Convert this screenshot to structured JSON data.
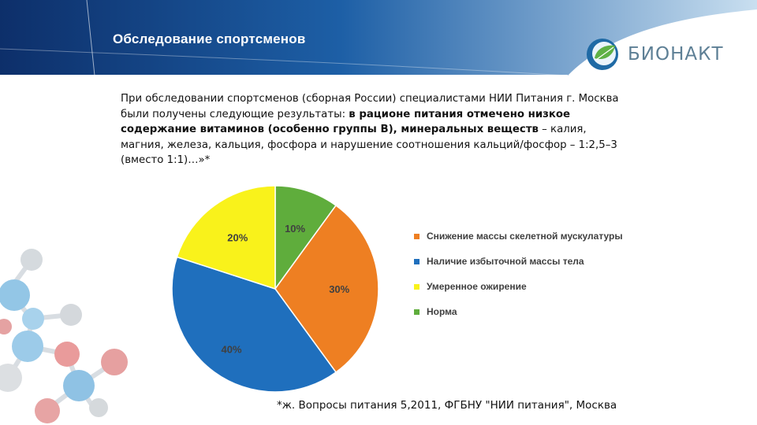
{
  "header": {
    "title": "Обследование спортсменов",
    "logo_text": "БИОНАКТ",
    "logo_icon": "leaf-globe-icon"
  },
  "intro": {
    "part1": "При обследовании спортсменов (сборная России) специалистами НИИ Питания г. Москва были получены следующие результаты: ",
    "part2_bold": "в рационе питания отмечено низкое содержание витаминов (особенно группы В), минеральных веществ",
    "part3": " – калия, магния, железа, кальция, фосфора и нарушение соотношения кальций/фосфор – 1:2,5–3 (вместо 1:1)…»*"
  },
  "footnote": "*ж. Вопросы питания 5,2011, ФГБНУ \"НИИ питания\", Москва",
  "chart_data": {
    "type": "pie",
    "categories": [
      "Снижение массы скелетной мускулатуры",
      "Наличие избыточной массы тела",
      "Умеренное ожирение",
      "Норма"
    ],
    "values": [
      30,
      40,
      20,
      10
    ],
    "labels": [
      "30%",
      "40%",
      "20%",
      "10%"
    ],
    "colors": [
      "#ee7f22",
      "#1f6fbd",
      "#f9f21b",
      "#5fad3c"
    ],
    "start": "12 o'clock, clockwise, after the 10% slice",
    "order_clockwise_from_top": [
      3,
      0,
      1,
      2
    ],
    "legend_position": "right"
  }
}
